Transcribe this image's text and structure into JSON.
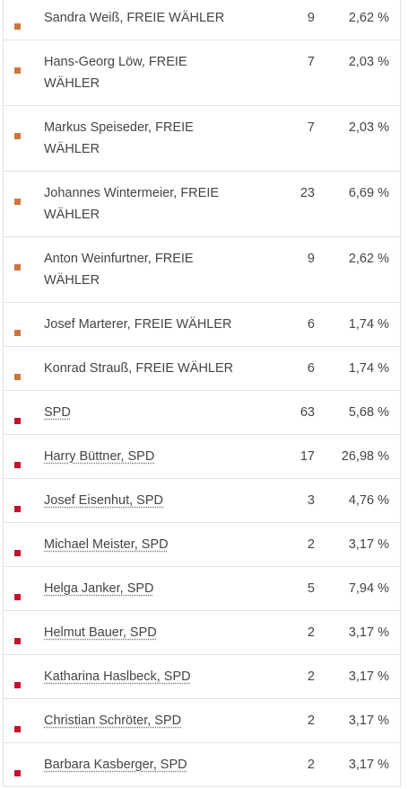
{
  "table": {
    "rows": [
      {
        "name": "Sandra Weiß, FREIE WÄHLER",
        "votes": 9,
        "share": "2,62 %",
        "color": "#d0743c",
        "link": false
      },
      {
        "name": "Hans-Georg Löw, FREIE WÄHLER",
        "votes": 7,
        "share": "2,03 %",
        "color": "#d0743c",
        "link": false
      },
      {
        "name": "Markus Speiseder, FREIE WÄHLER",
        "votes": 7,
        "share": "2,03 %",
        "color": "#d0743c",
        "link": false
      },
      {
        "name": "Johannes Wintermeier, FREIE WÄHLER",
        "votes": 23,
        "share": "6,69 %",
        "color": "#d0743c",
        "link": false
      },
      {
        "name": "Anton Weinfurtner, FREIE WÄHLER",
        "votes": 9,
        "share": "2,62 %",
        "color": "#d0743c",
        "link": false
      },
      {
        "name": "Josef Marterer, FREIE WÄHLER",
        "votes": 6,
        "share": "1,74 %",
        "color": "#d0743c",
        "link": false
      },
      {
        "name": "Konrad Strauß, FREIE WÄHLER",
        "votes": 6,
        "share": "1,74 %",
        "color": "#d0743c",
        "link": false
      },
      {
        "name": "SPD",
        "votes": 63,
        "share": "5,68 %",
        "color": "#c8102e",
        "link": true
      },
      {
        "name": "Harry Büttner, SPD",
        "votes": 17,
        "share": "26,98 %",
        "color": "#c8102e",
        "link": true
      },
      {
        "name": "Josef Eisenhut, SPD",
        "votes": 3,
        "share": "4,76 %",
        "color": "#c8102e",
        "link": true
      },
      {
        "name": "Michael Meister, SPD",
        "votes": 2,
        "share": "3,17 %",
        "color": "#c8102e",
        "link": true
      },
      {
        "name": "Helga Janker, SPD",
        "votes": 5,
        "share": "7,94 %",
        "color": "#c8102e",
        "link": true
      },
      {
        "name": "Helmut Bauer, SPD",
        "votes": 2,
        "share": "3,17 %",
        "color": "#c8102e",
        "link": true
      },
      {
        "name": "Katharina Haslbeck, SPD",
        "votes": 2,
        "share": "3,17 %",
        "color": "#c8102e",
        "link": true
      },
      {
        "name": "Christian Schröter, SPD",
        "votes": 2,
        "share": "3,17 %",
        "color": "#c8102e",
        "link": true
      },
      {
        "name": "Barbara Kasberger, SPD",
        "votes": 2,
        "share": "3,17 %",
        "color": "#c8102e",
        "link": true
      }
    ]
  }
}
